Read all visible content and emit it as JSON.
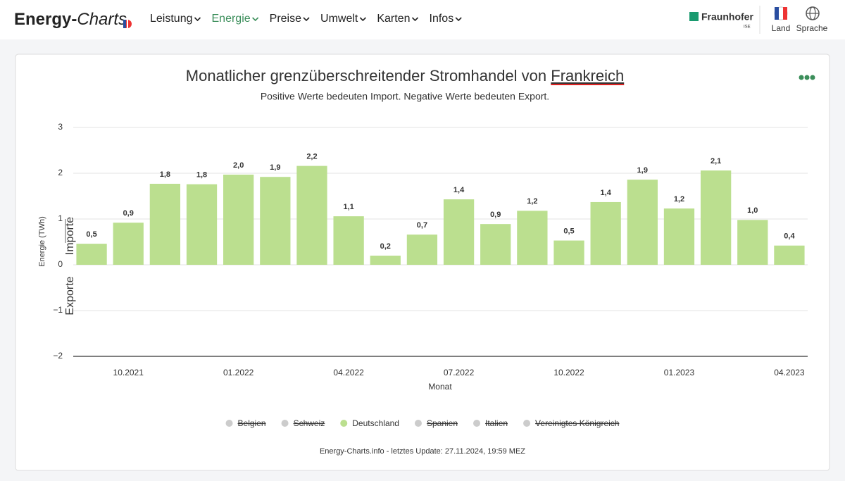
{
  "header": {
    "logo": [
      "Energy-",
      "Charts"
    ],
    "nav": [
      {
        "label": "Leistung",
        "active": false
      },
      {
        "label": "Energie",
        "active": true
      },
      {
        "label": "Preise",
        "active": false
      },
      {
        "label": "Umwelt",
        "active": false
      },
      {
        "label": "Karten",
        "active": false
      },
      {
        "label": "Infos",
        "active": false
      }
    ],
    "brand": "Fraunhofer",
    "brand_sub": "ISE",
    "buttons": [
      "Land",
      "Sprache"
    ]
  },
  "chart_data": {
    "type": "bar",
    "title": "Monatlicher grenzüberschreitender Stromhandel von",
    "title_country": "Frankreich",
    "subtitle": "Positive Werte bedeuten Import. Negative Werte bedeuten Export.",
    "y_label": "Energie (TWh)",
    "y_upper_label": "Importe",
    "y_lower_label": "Exporte",
    "x_label": "Monat",
    "categories": [
      null,
      "10.2021",
      null,
      null,
      "01.2022",
      null,
      null,
      "04.2022",
      null,
      null,
      "07.2022",
      null,
      null,
      "10.2022",
      null,
      null,
      "01.2023",
      null,
      null,
      "04.2023"
    ],
    "series": [
      {
        "name": "Deutschland",
        "color": "#bbdf8f",
        "values": [
          0.46,
          0.92,
          1.77,
          1.76,
          1.97,
          1.92,
          2.16,
          1.06,
          0.2,
          0.66,
          1.43,
          0.89,
          1.18,
          0.53,
          1.37,
          1.86,
          1.23,
          2.06,
          0.98,
          0.42
        ],
        "value_labels": [
          "0,5",
          "0,9",
          "1,8",
          "1,8",
          "2,0",
          "1,9",
          "2,2",
          "1,1",
          "0,2",
          "0,7",
          "1,4",
          "0,9",
          "1,2",
          "0,5",
          "1,4",
          "1,9",
          "1,2",
          "2,1",
          "1,0",
          "0,4"
        ]
      }
    ],
    "hidden_series": [
      "Belgien",
      "Schweiz",
      "Spanien",
      "Italien",
      "Vereinigtes Königreich"
    ],
    "ylim": [
      -2,
      3
    ],
    "yticks": [
      3,
      2,
      1,
      0,
      {
        "value": -1,
        "label": "−1"
      },
      {
        "value": -2,
        "label": "−2"
      }
    ],
    "grid": true,
    "footer": "Energy-Charts.info - letztes Update: 27.11.2024, 19:59 MEZ"
  }
}
